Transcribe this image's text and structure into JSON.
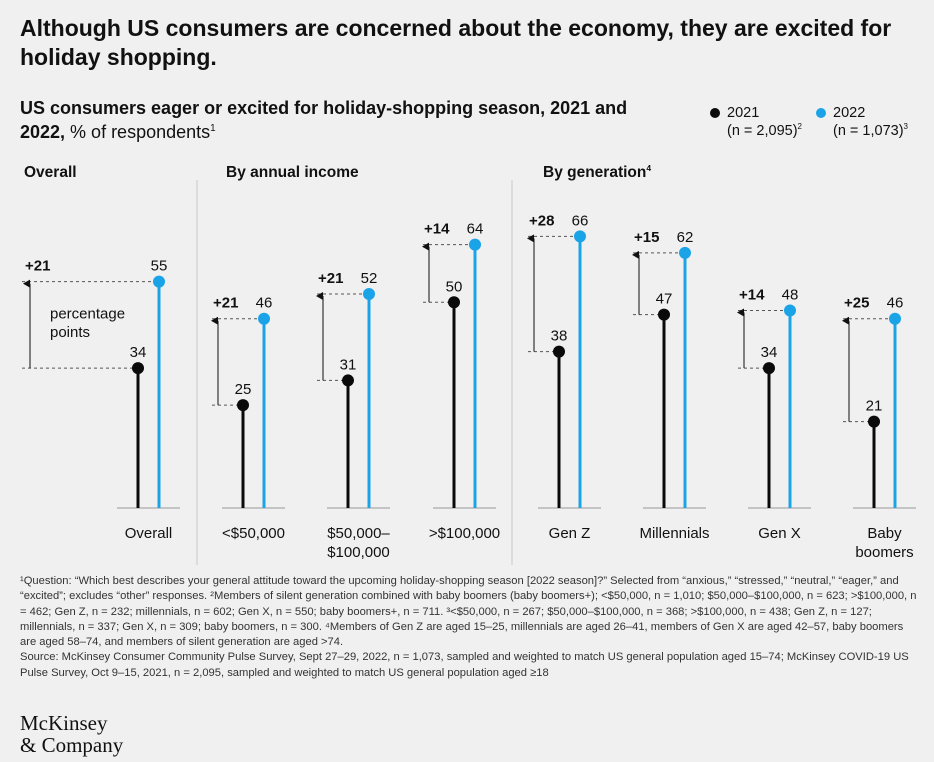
{
  "headline": "Although US consumers are concerned about the economy, they are excited for holiday shopping.",
  "subtitle": {
    "bold": "US consumers eager or excited for holiday-shopping season, 2021 and 2022,",
    "rest": " % of respondents",
    "note": "1"
  },
  "legend": [
    {
      "label": "2021",
      "n": "(n = 2,095)",
      "note": "2",
      "color": "#0a0a0a"
    },
    {
      "label": "2022",
      "n": "(n = 1,073)",
      "note": "3",
      "color": "#1ba3e8"
    }
  ],
  "sections": {
    "overall": "Overall",
    "income": "By annual income",
    "generation": "By generation",
    "generation_note": "4"
  },
  "annotation": "percentage points",
  "chart_data": {
    "type": "dot-stem",
    "series": [
      {
        "name": "2021",
        "color": "#0a0a0a",
        "values": [
          34,
          25,
          31,
          50,
          38,
          47,
          34,
          21
        ]
      },
      {
        "name": "2022",
        "color": "#1ba3e8",
        "values": [
          55,
          46,
          52,
          64,
          66,
          62,
          48,
          46
        ]
      }
    ],
    "categories": [
      "Overall",
      "<$50,000",
      "$50,000–$100,000",
      ">$100,000",
      "Gen Z",
      "Millennials",
      "Gen X",
      "Baby boomers"
    ],
    "category_lines": [
      [
        "Overall"
      ],
      [
        "<$50,000"
      ],
      [
        "$50,000–",
        "$100,000"
      ],
      [
        ">$100,000"
      ],
      [
        "Gen Z"
      ],
      [
        "Millennials"
      ],
      [
        "Gen X"
      ],
      [
        "Baby",
        "boomers"
      ]
    ],
    "differences": [
      "+21",
      "+21",
      "+21",
      "+14",
      "+28",
      "+15",
      "+14",
      "+25"
    ],
    "groups": [
      "Overall",
      "By annual income",
      "By annual income",
      "By annual income",
      "By generation",
      "By generation",
      "By generation",
      "By generation"
    ],
    "ylim": [
      0,
      100
    ]
  },
  "footnotes": [
    "¹Question: “Which best describes your general attitude toward the upcoming holiday-shopping season [2022 season]?” Selected from “anxious,” “stressed,” “neutral,” “eager,” and “excited”; excludes “other” responses. ²Members of silent generation combined with baby boomers (baby boomers+); <$50,000, n = 1,010; $50,000–$100,000, n = 623; >$100,000, n = 462; Gen Z, n = 232; millennials, n = 602; Gen X, n = 550; baby boomers+, n = 711. ³<$50,000, n = 267; $50,000–$100,000, n = 368; >$100,000, n = 438; Gen Z, n = 127; millennials, n = 337; Gen X, n = 309; baby boomers, n = 300. ⁴Members of Gen Z are aged 15–25, millennials are aged 26–41, members of Gen X are aged 42–57, baby boomers are aged 58–74, and members of silent generation are aged >74.",
    "Source: McKinsey Consumer Community Pulse Survey, Sept 27–29, 2022, n = 1,073, sampled and weighted to match US general population aged 15–74; McKinsey COVID-19 US Pulse Survey, Oct 9–15, 2021, n = 2,095, sampled and weighted to match US general population aged ≥18"
  ],
  "logo": [
    "McKinsey",
    "& Company"
  ]
}
